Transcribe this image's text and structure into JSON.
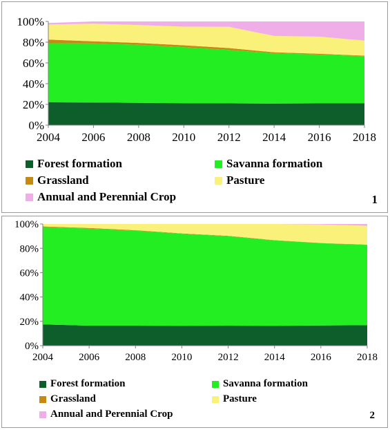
{
  "chart_data": [
    {
      "type": "area",
      "stacked": true,
      "panel_label": "1",
      "x": [
        2004,
        2006,
        2008,
        2010,
        2012,
        2014,
        2016,
        2018
      ],
      "x_ticks": [
        "2004",
        "2006",
        "2008",
        "2010",
        "2012",
        "2014",
        "2016",
        "2018"
      ],
      "y_ticks": [
        "0%",
        "20%",
        "40%",
        "60%",
        "80%",
        "100%"
      ],
      "ylim": [
        0,
        100
      ],
      "grid": false,
      "legend_position": "bottom",
      "series": [
        {
          "name": "Forest formation",
          "color": "#0d5e2b",
          "values": [
            22,
            21.8,
            21.5,
            21.2,
            21,
            20.8,
            21,
            21
          ]
        },
        {
          "name": "Savanna formation",
          "color": "#22ee22",
          "values": [
            57,
            57,
            56,
            54,
            51.5,
            48.5,
            47,
            45.5
          ]
        },
        {
          "name": "Grassland",
          "color": "#c68a10",
          "values": [
            3.5,
            2,
            1.8,
            1.8,
            1.8,
            1,
            0.8,
            0.5
          ]
        },
        {
          "name": "Pasture",
          "color": "#f9f17a",
          "values": [
            14.5,
            17,
            17.2,
            18,
            20.5,
            15.7,
            16.5,
            14.5
          ]
        },
        {
          "name": "Annual and Perennial Crop",
          "color": "#f0aee8",
          "values": [
            1.5,
            2.2,
            3.5,
            5,
            5.2,
            14,
            14.7,
            18.5
          ]
        }
      ]
    },
    {
      "type": "area",
      "stacked": true,
      "panel_label": "2",
      "x": [
        2004,
        2006,
        2008,
        2010,
        2012,
        2014,
        2016,
        2018
      ],
      "x_ticks": [
        "2004",
        "2006",
        "2008",
        "2010",
        "2012",
        "2014",
        "2016",
        "2018"
      ],
      "y_ticks": [
        "0%",
        "20%",
        "40%",
        "60%",
        "80%",
        "100%"
      ],
      "ylim": [
        0,
        100
      ],
      "grid": false,
      "legend_position": "bottom",
      "series": [
        {
          "name": "Forest formation",
          "color": "#0d5e2b",
          "values": [
            17.5,
            16.5,
            16.5,
            16.3,
            16.5,
            16.3,
            16.6,
            16.8
          ]
        },
        {
          "name": "Savanna formation",
          "color": "#22ee22",
          "values": [
            80,
            79.7,
            78,
            75.7,
            73.5,
            70.2,
            67.6,
            66
          ]
        },
        {
          "name": "Grassland",
          "color": "#c68a10",
          "values": [
            0.5,
            0.5,
            0.4,
            0.3,
            0.3,
            0.2,
            0.2,
            0.2
          ]
        },
        {
          "name": "Pasture",
          "color": "#f9f17a",
          "values": [
            2,
            3.3,
            5.1,
            7.7,
            9.7,
            13.3,
            15.2,
            15.5
          ]
        },
        {
          "name": "Annual and Perennial Crop",
          "color": "#f0aee8",
          "values": [
            0,
            0,
            0,
            0,
            0,
            0,
            0.4,
            1.5
          ]
        }
      ]
    }
  ]
}
